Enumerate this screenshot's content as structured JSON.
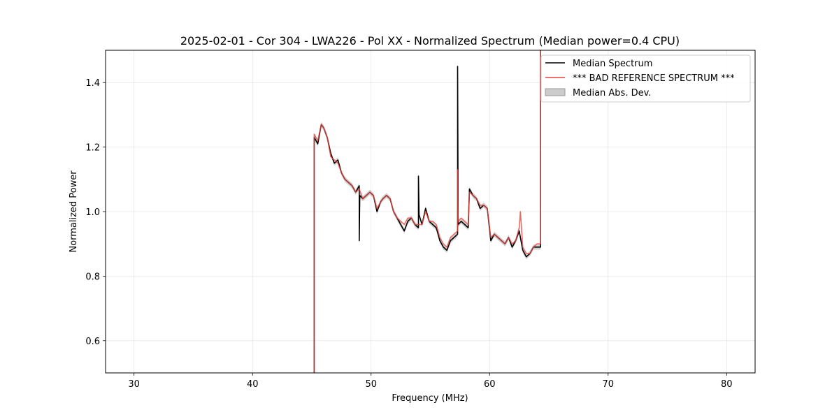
{
  "chart_data": {
    "type": "line",
    "title": "2025-02-01 - Cor 304 - LWA226 - Pol XX - Normalized Spectrum (Median power=0.4 CPU)",
    "xlabel": "Frequency (MHz)",
    "ylabel": "Normalized Power",
    "xlim": [
      27.6,
      82.4
    ],
    "ylim": [
      0.5,
      1.5
    ],
    "xticks": [
      30,
      40,
      50,
      60,
      70,
      80
    ],
    "yticks": [
      0.6,
      0.8,
      1.0,
      1.2,
      1.4
    ],
    "xtick_labels": [
      "30",
      "40",
      "50",
      "60",
      "70",
      "80"
    ],
    "ytick_labels": [
      "0.6",
      "0.8",
      "1.0",
      "1.2",
      "1.4"
    ],
    "grid": true,
    "legend_position": "top-right",
    "legend": [
      "Median Spectrum",
      "*** BAD REFERENCE SPECTRUM ***",
      "Median Abs. Dev."
    ],
    "series": [
      {
        "name": "Median Spectrum",
        "color": "#000000",
        "x": [
          45.2,
          45.2,
          45.5,
          45.8,
          46.0,
          46.3,
          46.6,
          46.9,
          47.2,
          47.5,
          47.8,
          48.1,
          48.4,
          48.7,
          49.0,
          49.0,
          49.05,
          49.3,
          49.6,
          49.9,
          50.2,
          50.5,
          50.8,
          51.0,
          51.3,
          51.6,
          51.9,
          52.2,
          52.5,
          52.8,
          53.1,
          53.4,
          53.7,
          54.0,
          54.0,
          54.05,
          54.3,
          54.6,
          54.9,
          55.2,
          55.5,
          55.8,
          56.1,
          56.4,
          56.7,
          57.0,
          57.3,
          57.3,
          57.35,
          57.6,
          57.9,
          58.2,
          58.3,
          58.6,
          58.9,
          59.2,
          59.5,
          59.8,
          60.1,
          60.4,
          60.7,
          61.0,
          61.3,
          61.6,
          61.9,
          62.2,
          62.5,
          62.8,
          63.1,
          63.4,
          63.7,
          64.0,
          64.3,
          64.3
        ],
        "y": [
          0.5,
          1.23,
          1.21,
          1.27,
          1.26,
          1.23,
          1.18,
          1.15,
          1.16,
          1.12,
          1.1,
          1.09,
          1.08,
          1.06,
          1.08,
          0.91,
          1.05,
          1.04,
          1.05,
          1.06,
          1.05,
          1.0,
          1.03,
          1.04,
          1.05,
          1.04,
          1.0,
          0.98,
          0.96,
          0.94,
          0.97,
          0.98,
          0.96,
          0.95,
          1.11,
          0.99,
          0.96,
          1.01,
          0.97,
          0.96,
          0.95,
          0.91,
          0.89,
          0.88,
          0.91,
          0.92,
          0.93,
          1.45,
          0.96,
          0.97,
          0.96,
          0.95,
          1.07,
          1.05,
          1.04,
          1.01,
          1.02,
          1.01,
          0.91,
          0.93,
          0.92,
          0.91,
          0.9,
          0.92,
          0.89,
          0.91,
          0.94,
          0.88,
          0.86,
          0.87,
          0.89,
          0.89,
          0.89,
          1.5
        ]
      },
      {
        "name": "*** BAD REFERENCE SPECTRUM ***",
        "color": "#e8453f",
        "x": [
          45.2,
          45.2,
          45.5,
          45.8,
          46.0,
          46.3,
          46.6,
          46.9,
          47.2,
          47.5,
          47.8,
          48.1,
          48.4,
          48.7,
          49.0,
          49.3,
          49.6,
          49.9,
          50.2,
          50.5,
          50.8,
          51.0,
          51.3,
          51.6,
          51.9,
          52.2,
          52.5,
          52.8,
          53.1,
          53.4,
          53.7,
          54.0,
          54.3,
          54.6,
          54.9,
          55.2,
          55.5,
          55.8,
          56.1,
          56.4,
          56.7,
          57.0,
          57.3,
          57.3,
          57.35,
          57.6,
          57.9,
          58.2,
          58.3,
          58.6,
          58.9,
          59.2,
          59.5,
          59.8,
          60.1,
          60.4,
          60.7,
          61.0,
          61.3,
          61.6,
          61.9,
          62.2,
          62.5,
          62.6,
          62.8,
          63.1,
          63.4,
          63.7,
          64.0,
          64.3,
          64.3
        ],
        "y": [
          0.5,
          1.24,
          1.22,
          1.27,
          1.26,
          1.23,
          1.17,
          1.16,
          1.15,
          1.12,
          1.1,
          1.09,
          1.08,
          1.06,
          1.07,
          1.04,
          1.05,
          1.06,
          1.05,
          1.01,
          1.03,
          1.04,
          1.05,
          1.04,
          1.0,
          0.98,
          0.97,
          0.96,
          0.98,
          0.98,
          0.96,
          0.96,
          0.96,
          1.0,
          0.97,
          0.97,
          0.96,
          0.92,
          0.9,
          0.89,
          0.92,
          0.93,
          0.94,
          1.13,
          0.97,
          0.98,
          0.97,
          0.96,
          1.06,
          1.05,
          1.04,
          1.02,
          1.02,
          1.01,
          0.92,
          0.93,
          0.92,
          0.91,
          0.9,
          0.92,
          0.9,
          0.91,
          0.95,
          1.0,
          0.89,
          0.87,
          0.87,
          0.89,
          0.9,
          0.9,
          1.5
        ]
      }
    ]
  }
}
